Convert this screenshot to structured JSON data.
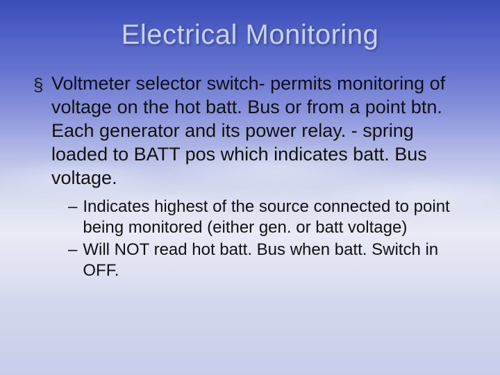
{
  "slide": {
    "title": "Electrical Monitoring",
    "title_color": "#c6d2ef",
    "title_fontsize": 40,
    "body_color": "#111111",
    "body_fontsize_l1": 27,
    "body_fontsize_l2": 24,
    "background_gradient": [
      "#3a4db8",
      "#4d5ec4",
      "#6472cf",
      "#8a94dc",
      "#b8bfe8",
      "#d8dcf0",
      "#e8eaf5",
      "#dfe2f2",
      "#d2d6ed",
      "#c8cde9"
    ],
    "bullets": [
      {
        "marker": "§",
        "text": "Voltmeter selector switch- permits monitoring of voltage on the hot batt. Bus or from a point btn. Each generator and its power relay. - spring loaded to BATT pos which indicates batt. Bus voltage.",
        "children": [
          {
            "marker": "–",
            "text": "Indicates highest of the source connected to point being monitored (either gen. or batt voltage)"
          },
          {
            "marker": "–",
            "text": "Will NOT read hot batt. Bus when batt. Switch in OFF."
          }
        ]
      }
    ]
  }
}
